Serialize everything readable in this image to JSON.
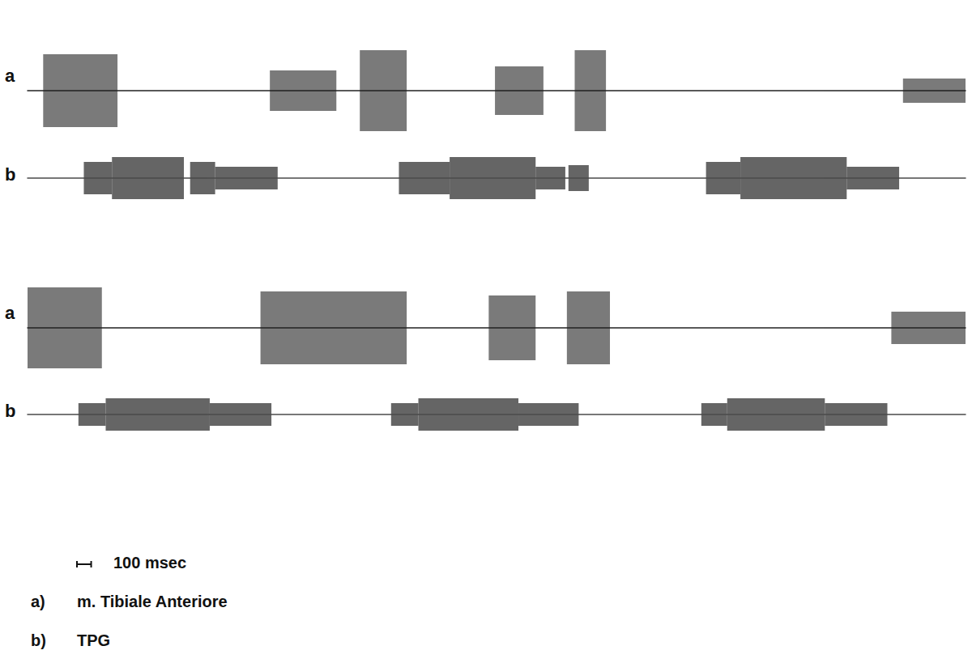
{
  "chart_data": [
    {
      "type": "emg",
      "label": "a",
      "xlim": [
        0,
        6600
      ],
      "ylim": [
        -1,
        1
      ],
      "tick_labels": false,
      "color": "#222222",
      "bursts": [
        {
          "start": 110,
          "end": 633,
          "amplitude": 0.9
        },
        {
          "start": 1705,
          "end": 2173,
          "amplitude": 0.5
        },
        {
          "start": 2338,
          "end": 2668,
          "amplitude": 1.0
        },
        {
          "start": 3289,
          "end": 3630,
          "amplitude": 0.6
        },
        {
          "start": 3850,
          "end": 4070,
          "amplitude": 1.0
        },
        {
          "start": 6160,
          "end": 6600,
          "amplitude": 0.3
        }
      ]
    },
    {
      "type": "tpg",
      "label": "b",
      "xlim": [
        0,
        6600
      ],
      "ylim": [
        -1.5,
        1.5
      ],
      "tick_labels": false,
      "color": "#4a4a4a",
      "segments": [
        {
          "start": 396,
          "end": 594,
          "level": 1.0
        },
        {
          "start": 594,
          "end": 1100,
          "level": 1.3
        },
        {
          "start": 1144,
          "end": 1320,
          "level": 1.0
        },
        {
          "start": 1320,
          "end": 1760,
          "level": 0.7
        },
        {
          "start": 2613,
          "end": 2970,
          "level": 1.0
        },
        {
          "start": 2970,
          "end": 3575,
          "level": 1.3
        },
        {
          "start": 3575,
          "end": 3784,
          "level": 0.7
        },
        {
          "start": 3806,
          "end": 3949,
          "level": 0.8
        },
        {
          "start": 4774,
          "end": 5016,
          "level": 1.0
        },
        {
          "start": 5016,
          "end": 5764,
          "level": 1.3
        },
        {
          "start": 5764,
          "end": 6133,
          "level": 0.7
        }
      ]
    },
    {
      "type": "emg",
      "label": "a",
      "xlim": [
        0,
        6600
      ],
      "ylim": [
        -1,
        1
      ],
      "tick_labels": false,
      "color": "#222222",
      "bursts": [
        {
          "start": 0,
          "end": 523,
          "amplitude": 1.0
        },
        {
          "start": 1639,
          "end": 2668,
          "amplitude": 0.9
        },
        {
          "start": 3245,
          "end": 3575,
          "amplitude": 0.8
        },
        {
          "start": 3795,
          "end": 4098,
          "amplitude": 0.9
        },
        {
          "start": 6078,
          "end": 6600,
          "amplitude": 0.4
        }
      ]
    },
    {
      "type": "tpg",
      "label": "b",
      "xlim": [
        0,
        6600
      ],
      "ylim": [
        -1.5,
        1.5
      ],
      "tick_labels": false,
      "color": "#4a4a4a",
      "segments": [
        {
          "start": 358,
          "end": 550,
          "level": 0.7
        },
        {
          "start": 550,
          "end": 1282,
          "level": 1.0
        },
        {
          "start": 1282,
          "end": 1716,
          "level": 0.7
        },
        {
          "start": 2558,
          "end": 2750,
          "level": 0.7
        },
        {
          "start": 2750,
          "end": 3454,
          "level": 1.0
        },
        {
          "start": 3454,
          "end": 3878,
          "level": 0.7
        },
        {
          "start": 4741,
          "end": 4923,
          "level": 0.7
        },
        {
          "start": 4923,
          "end": 5610,
          "level": 1.0
        },
        {
          "start": 5610,
          "end": 6050,
          "level": 0.7
        }
      ]
    }
  ],
  "scale_bar": {
    "value": 100,
    "label": "100 msec"
  },
  "key": [
    {
      "letter": "a)",
      "text": "m. Tibiale Anteriore"
    },
    {
      "letter": "b)",
      "text": "TPG"
    }
  ]
}
